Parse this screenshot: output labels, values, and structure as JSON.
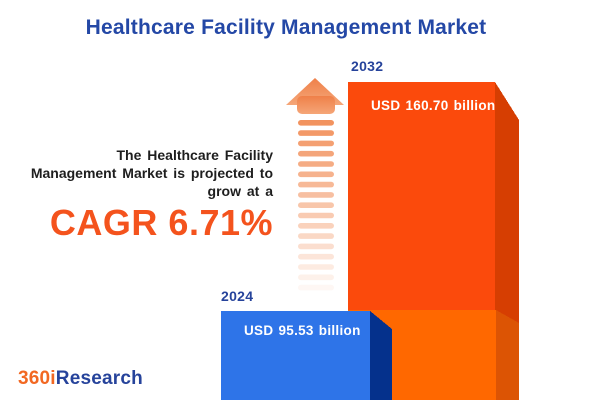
{
  "title": "Healthcare Facility Management Market",
  "annotation": {
    "text": "The Healthcare Facility\nManagement Market is projected to\ngrow at a",
    "cagr": "CAGR 6.71%"
  },
  "chart_data": {
    "type": "bar",
    "title": "Healthcare Facility Management Market",
    "categories": [
      "2024",
      "2032"
    ],
    "values": [
      95.53,
      160.7
    ],
    "unit": "USD billion",
    "value_labels": [
      "USD 95.53 billion",
      "USD 160.70 billion"
    ],
    "cagr_percent": 6.71,
    "legend_position": "none",
    "grid": false,
    "style": "3d-infographic-bars"
  },
  "bars": {
    "bar_2024": {
      "year": "2024",
      "label": "USD 95.53 billion"
    },
    "bar_2032": {
      "year": "2032",
      "label": "USD 160.70 billion"
    }
  },
  "logo": {
    "part1": "360i",
    "part2": "Research"
  },
  "icons": {
    "growth_arrow": "up-arrow-with-fading-dashed-tail"
  },
  "colors": {
    "title_blue": "#2448A6",
    "year_label_blue": "#26439B",
    "annotation_text": "#1E1E1E",
    "cagr_orange": "#F4531D",
    "bar_2024_front": "#2E74E8",
    "bar_2024_side": "#05318C",
    "bar_2032_front": "#FB4A0C",
    "bar_2032_side": "#D63E02",
    "bar_2032_overlap_front": "#FF6800",
    "bar_2032_overlap_side": "#DC5404",
    "arrow_head_top": "#EF8049",
    "arrow_head_bottom": "#F5A678",
    "arrow_dash": "#F2935F",
    "logo_orange": "#F26822",
    "logo_blue": "#26439B",
    "value_text_white": "#FFFFFF"
  }
}
